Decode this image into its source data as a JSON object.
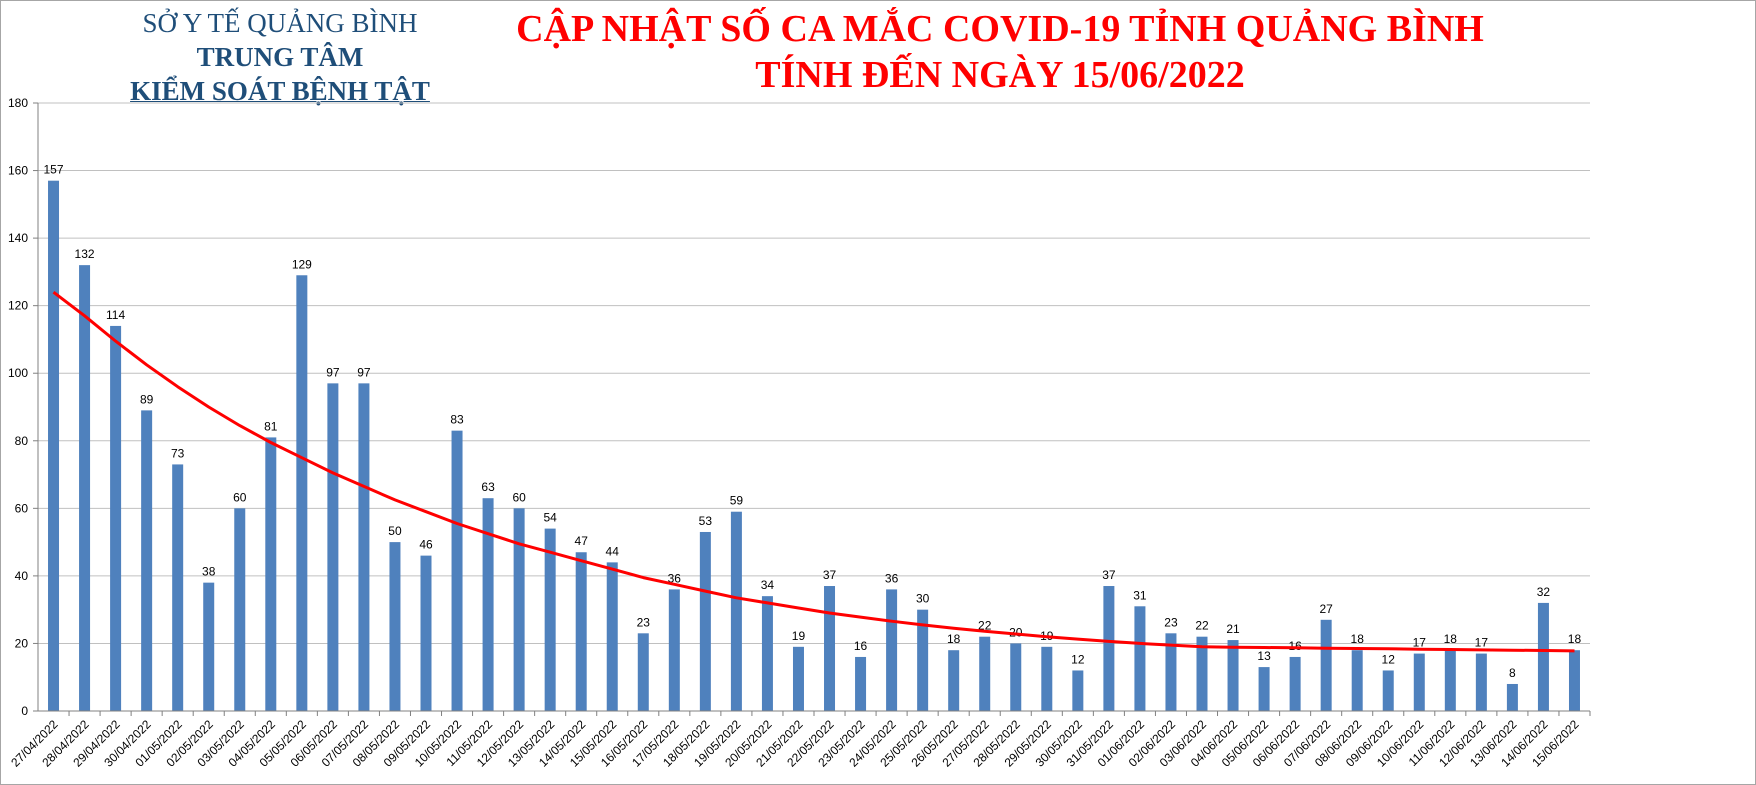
{
  "header": {
    "org_line1": "SỞ Y TẾ QUẢNG BÌNH",
    "org_line2": "TRUNG TÂM",
    "org_line3": "KIỂM SOÁT BỆNH TẬT",
    "title_line1": "CẬP NHẬT SỐ CA MẮC COVID-19 TỈNH QUẢNG BÌNH",
    "title_line2": "TÍNH ĐẾN NGÀY 15/06/2022"
  },
  "colors": {
    "bar": "#4f81bd",
    "trendline": "#ff0000",
    "gridline": "#c0c0c0",
    "title": "#ff0000",
    "org": "#1f4e79"
  },
  "chart_data": {
    "type": "bar",
    "title": "CẬP NHẬT SỐ CA MẮC COVID-19 TỈNH QUẢNG BÌNH TÍNH ĐẾN NGÀY 15/06/2022",
    "xlabel": "",
    "ylabel": "",
    "ylim": [
      0,
      180
    ],
    "yticks": [
      0,
      20,
      40,
      60,
      80,
      100,
      120,
      140,
      160,
      180
    ],
    "grid": true,
    "legend": "none",
    "categories": [
      "27/04/2022",
      "28/04/2022",
      "29/04/2022",
      "30/04/2022",
      "01/05/2022",
      "02/05/2022",
      "03/05/2022",
      "04/05/2022",
      "05/05/2022",
      "06/05/2022",
      "07/05/2022",
      "08/05/2022",
      "09/05/2022",
      "10/05/2022",
      "11/05/2022",
      "12/05/2022",
      "13/05/2022",
      "14/05/2022",
      "15/05/2022",
      "16/05/2022",
      "17/05/2022",
      "18/05/2022",
      "19/05/2022",
      "20/05/2022",
      "21/05/2022",
      "22/05/2022",
      "23/05/2022",
      "24/05/2022",
      "25/05/2022",
      "26/05/2022",
      "27/05/2022",
      "28/05/2022",
      "29/05/2022",
      "30/05/2022",
      "31/05/2022",
      "01/06/2022",
      "02/06/2022",
      "03/06/2022",
      "04/06/2022",
      "05/06/2022",
      "06/06/2022",
      "07/06/2022",
      "08/06/2022",
      "09/06/2022",
      "10/06/2022",
      "11/06/2022",
      "12/06/2022",
      "13/06/2022",
      "14/06/2022",
      "15/06/2022"
    ],
    "values": [
      157,
      132,
      114,
      89,
      73,
      38,
      60,
      81,
      129,
      97,
      97,
      50,
      46,
      83,
      63,
      60,
      54,
      47,
      44,
      23,
      36,
      53,
      59,
      34,
      19,
      37,
      16,
      36,
      30,
      18,
      22,
      20,
      19,
      12,
      37,
      31,
      23,
      22,
      21,
      13,
      16,
      27,
      18,
      12,
      17,
      18,
      17,
      8,
      32,
      18
    ],
    "trendline": {
      "type": "trend",
      "values": [
        124,
        117,
        109.5,
        102.5,
        96,
        90,
        84.5,
        79.5,
        75,
        70.5,
        66.5,
        62.5,
        59,
        55.5,
        52.5,
        49.5,
        47,
        44.5,
        42,
        39.5,
        37.5,
        35.5,
        33.5,
        32,
        30.5,
        29,
        27.8,
        26.6,
        25.5,
        24.5,
        23.6,
        22.8,
        22,
        21.3,
        20.6,
        20,
        19.5,
        19,
        18.9,
        18.8,
        18.7,
        18.6,
        18.5,
        18.4,
        18.3,
        18.2,
        18.1,
        18,
        17.9,
        17.8
      ]
    }
  }
}
